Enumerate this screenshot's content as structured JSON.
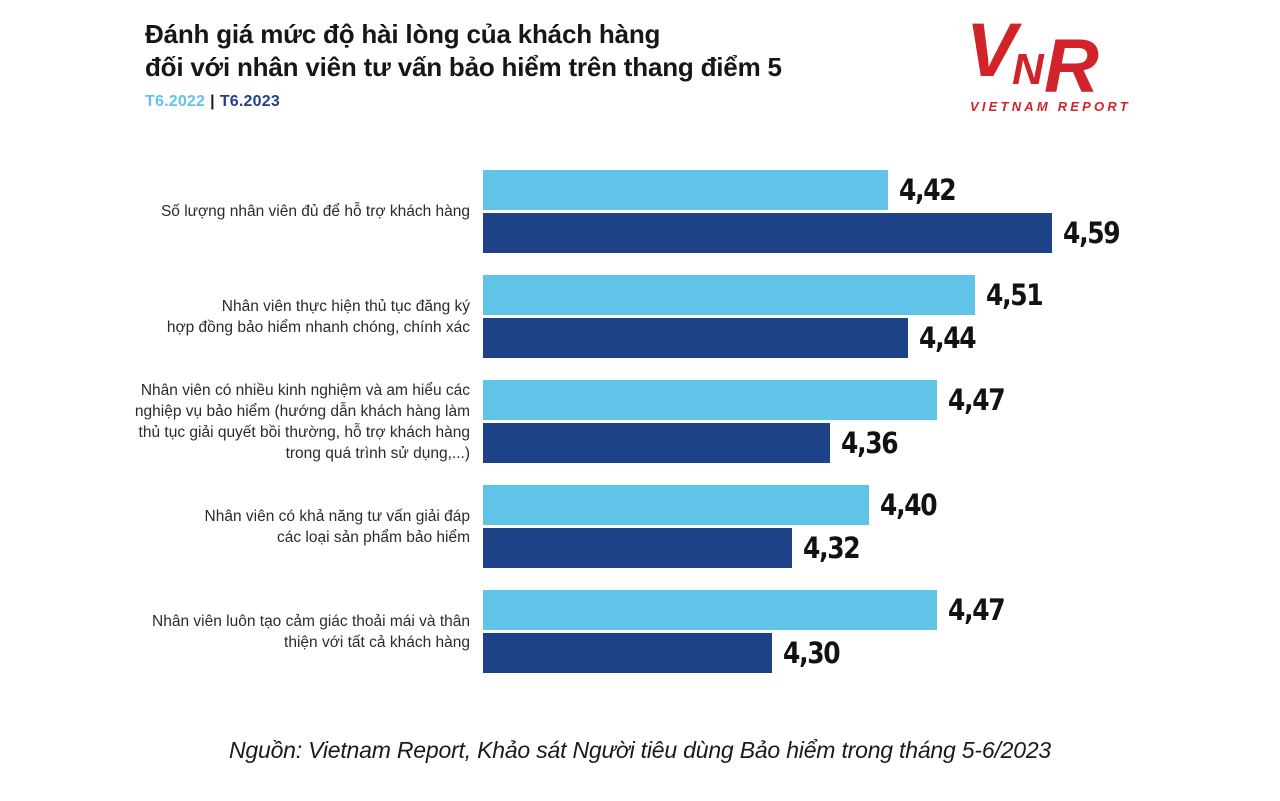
{
  "header": {
    "title_line1": "Đánh giá mức độ hài lòng của khách hàng",
    "title_line2": "đối với nhân viên tư vấn bảo hiểm trên thang điểm 5"
  },
  "logo": {
    "letter_v": "V",
    "letter_n": "N",
    "letter_r": "R",
    "wordmark": "VIETNAM REPORT",
    "color": "#d2232a"
  },
  "chart_data": {
    "type": "bar",
    "orientation": "horizontal",
    "title": "Đánh giá mức độ hài lòng của khách hàng đối với nhân viên tư vấn bảo hiểm trên thang điểm 5",
    "categories": [
      "Số lượng nhân viên đủ để hỗ trợ khách hàng",
      "Nhân viên thực hiện thủ tục đăng ký\nhợp đồng bảo hiểm nhanh chóng, chính xác",
      "Nhân viên có nhiều kinh nghiệm và am hiểu các\nnghiệp vụ bảo hiểm (hướng dẫn khách hàng làm\nthủ tục giải quyết bồi thường, hỗ trợ khách hàng\ntrong quá trình sử dụng,...)",
      "Nhân viên có khả năng tư vấn giải đáp\ncác loại sản phẩm bảo hiểm",
      "Nhân viên luôn tạo cảm giác thoải mái và thân\nthiện với tất cả khách hàng"
    ],
    "series": [
      {
        "name": "T6.2022",
        "color": "#5fc4e8",
        "values": [
          4.42,
          4.51,
          4.47,
          4.4,
          4.47
        ]
      },
      {
        "name": "T6.2023",
        "color": "#1e4287",
        "values": [
          4.59,
          4.44,
          4.36,
          4.32,
          4.3
        ]
      }
    ],
    "value_labels": [
      [
        "4,42",
        "4,51",
        "4,47",
        "4,40",
        "4,47"
      ],
      [
        "4,59",
        "4,44",
        "4,36",
        "4,32",
        "4,30"
      ]
    ],
    "xlim": [
      4.0,
      4.8
    ],
    "decimal_separator": ",",
    "grid": false,
    "axis_visible": false,
    "legend_position": "top-left",
    "legend_separator": "|"
  },
  "footer": {
    "source": "Nguồn: Vietnam Report, Khảo sát Người tiêu dùng Bảo hiểm trong tháng 5-6/2023"
  }
}
